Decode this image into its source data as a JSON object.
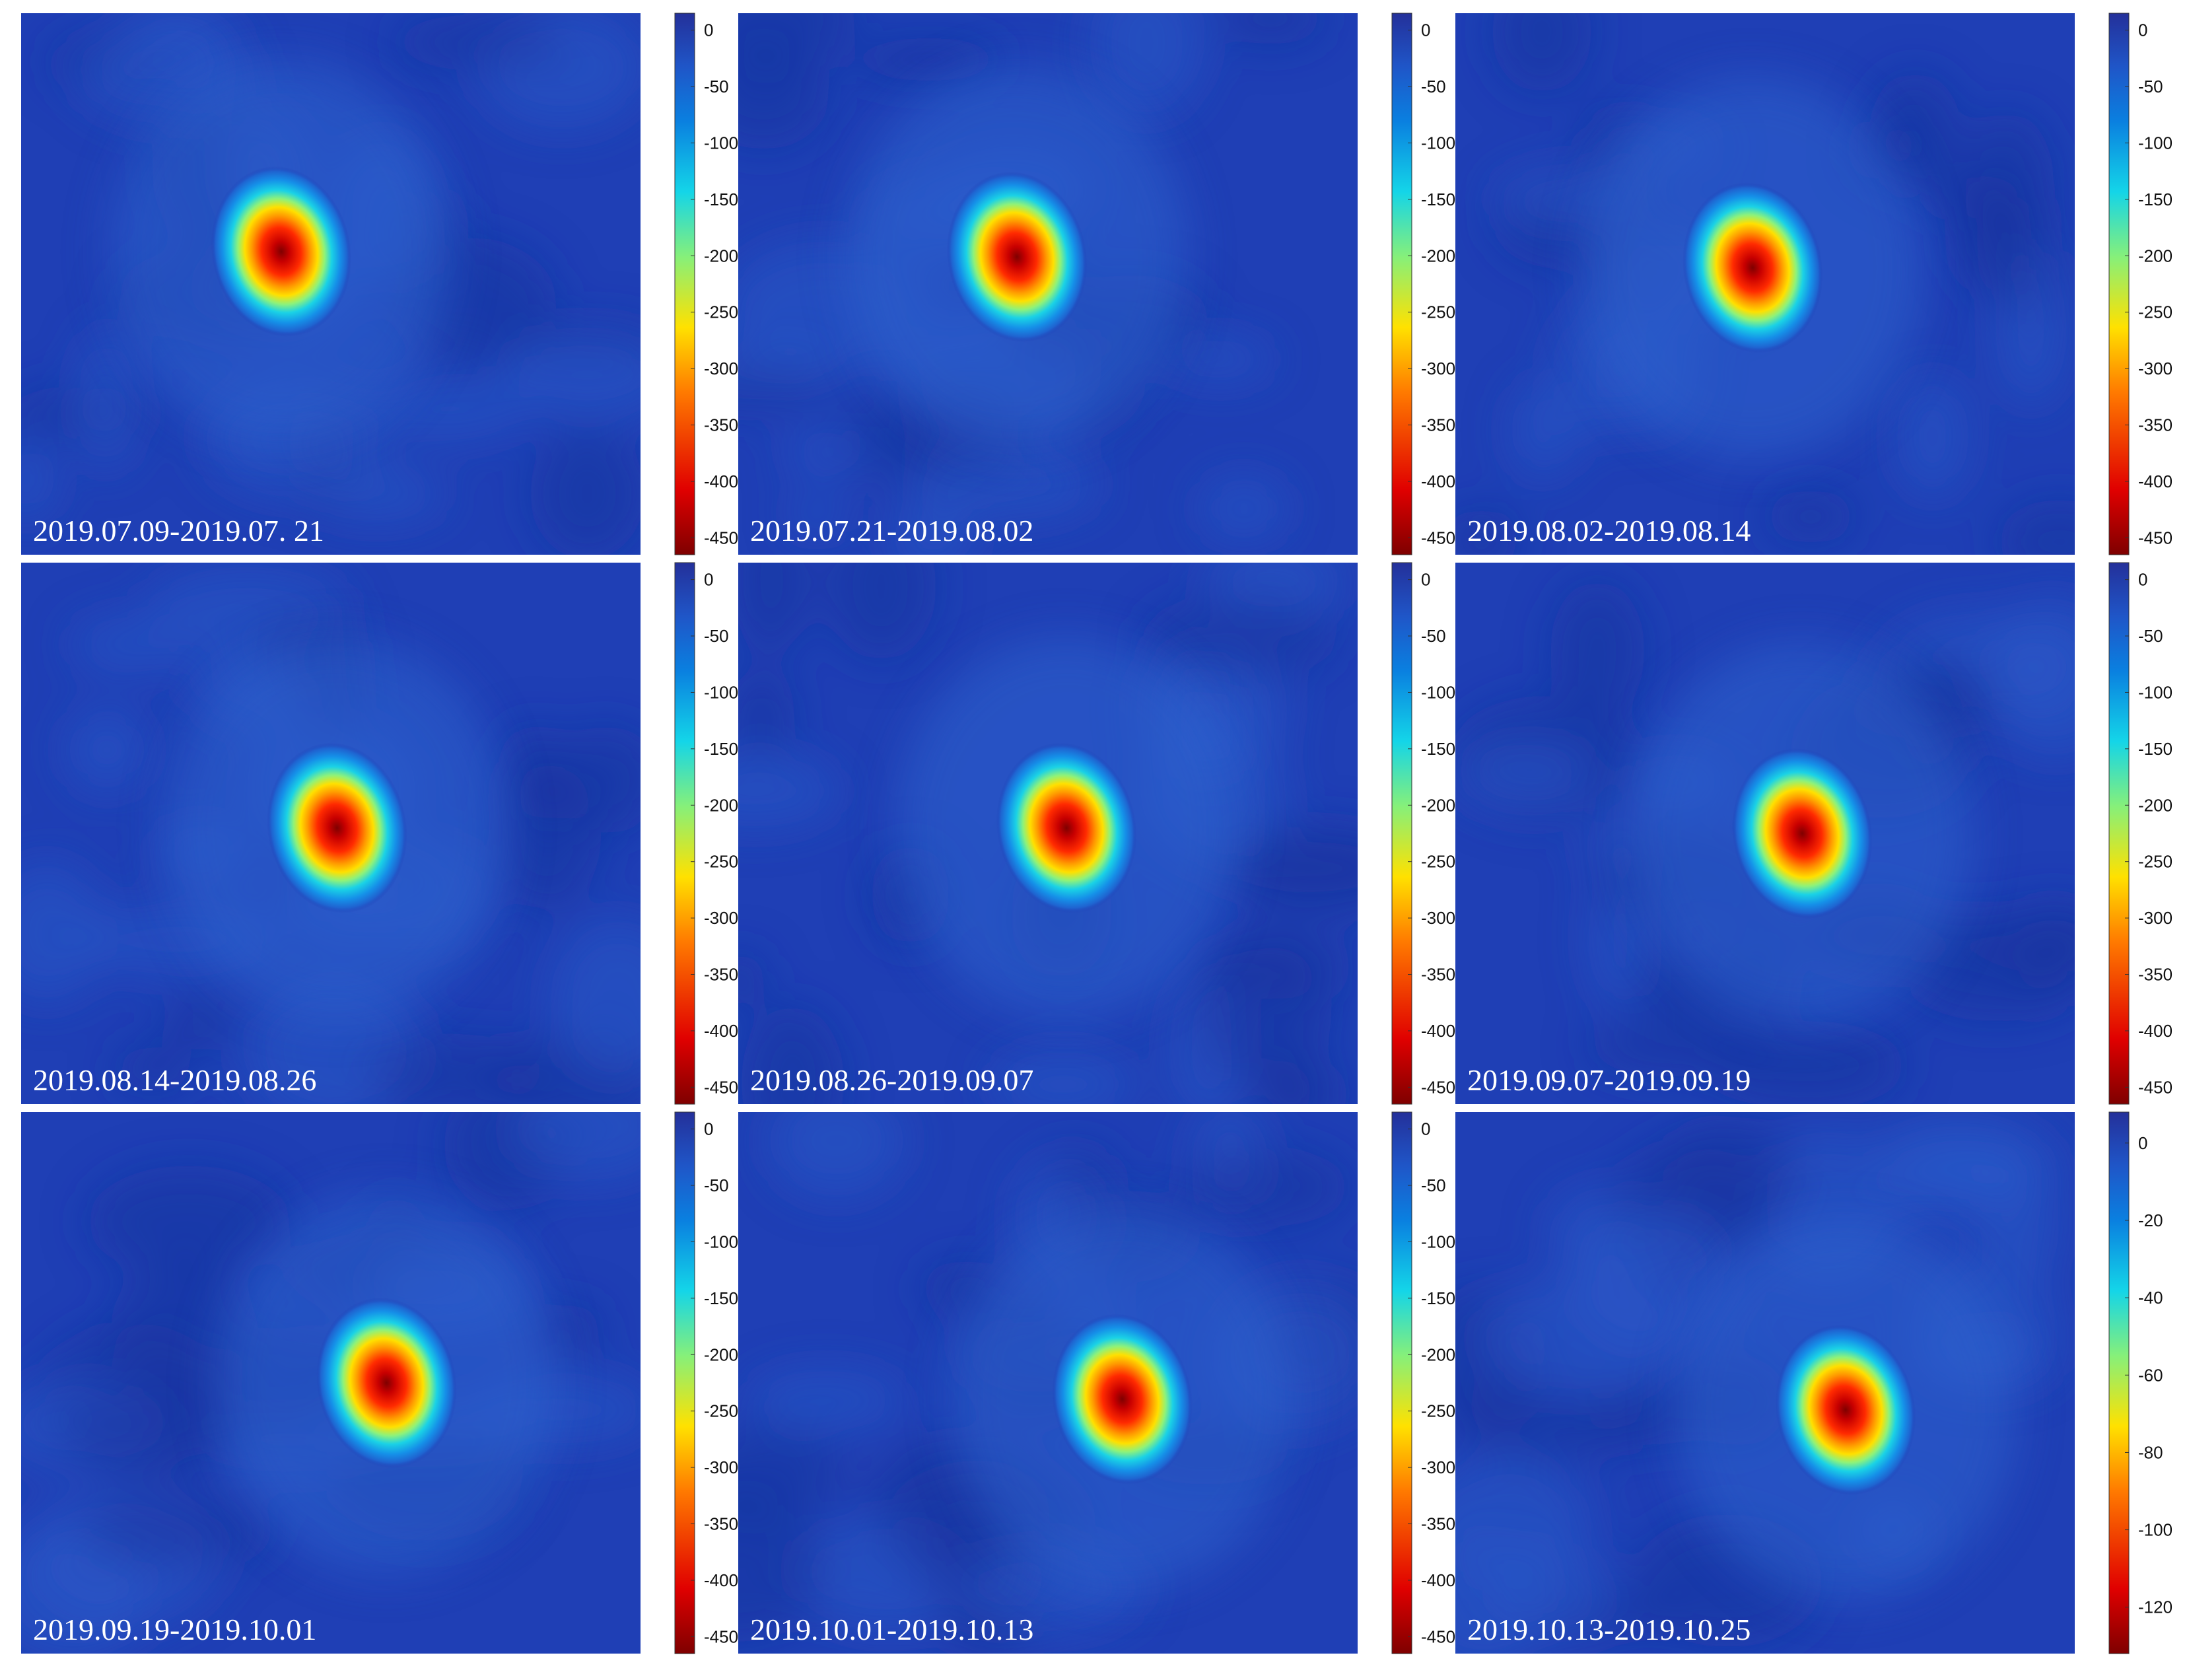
{
  "chart_data": [
    {
      "type": "heatmap",
      "annotation": "2019.07.09-2019.07. 21",
      "colorbar": {
        "ticks": [
          0,
          -50,
          -100,
          -150,
          -200,
          -250,
          -300,
          -350,
          -400,
          -450
        ],
        "range": [
          -465,
          15
        ]
      },
      "center": [
        0.42,
        0.44
      ],
      "peak": -465,
      "colors": {
        "high": "#1f3fb5",
        "low": "#7f0000"
      }
    },
    {
      "type": "heatmap",
      "annotation": "2019.07.21-2019.08.02",
      "colorbar": {
        "ticks": [
          0,
          -50,
          -100,
          -150,
          -200,
          -250,
          -300,
          -350,
          -400,
          -450
        ],
        "range": [
          -465,
          15
        ]
      },
      "center": [
        0.45,
        0.45
      ],
      "peak": -465,
      "colors": {
        "high": "#1f3fb5",
        "low": "#7f0000"
      }
    },
    {
      "type": "heatmap",
      "annotation": "2019.08.02-2019.08.14",
      "colorbar": {
        "ticks": [
          0,
          -50,
          -100,
          -150,
          -200,
          -250,
          -300,
          -350,
          -400,
          -450
        ],
        "range": [
          -465,
          15
        ]
      },
      "center": [
        0.48,
        0.47
      ],
      "peak": -465,
      "colors": {
        "high": "#1f3fb5",
        "low": "#7f0000"
      }
    },
    {
      "type": "heatmap",
      "annotation": "2019.08.14-2019.08.26",
      "colorbar": {
        "ticks": [
          0,
          -50,
          -100,
          -150,
          -200,
          -250,
          -300,
          -350,
          -400,
          -450
        ],
        "range": [
          -465,
          15
        ]
      },
      "center": [
        0.51,
        0.49
      ],
      "peak": -465,
      "colors": {
        "high": "#1f3fb5",
        "low": "#7f0000"
      }
    },
    {
      "type": "heatmap",
      "annotation": "2019.08.26-2019.09.07",
      "colorbar": {
        "ticks": [
          0,
          -50,
          -100,
          -150,
          -200,
          -250,
          -300,
          -350,
          -400,
          -450
        ],
        "range": [
          -465,
          15
        ]
      },
      "center": [
        0.53,
        0.49
      ],
      "peak": -465,
      "colors": {
        "high": "#1f3fb5",
        "low": "#7f0000"
      }
    },
    {
      "type": "heatmap",
      "annotation": "2019.09.07-2019.09.19",
      "colorbar": {
        "ticks": [
          0,
          -50,
          -100,
          -150,
          -200,
          -250,
          -300,
          -350,
          -400,
          -450
        ],
        "range": [
          -465,
          15
        ]
      },
      "center": [
        0.56,
        0.5
      ],
      "peak": -465,
      "colors": {
        "high": "#1f3fb5",
        "low": "#7f0000"
      }
    },
    {
      "type": "heatmap",
      "annotation": "2019.09.19-2019.10.01",
      "colorbar": {
        "ticks": [
          0,
          -50,
          -100,
          -150,
          -200,
          -250,
          -300,
          -350,
          -400,
          -450
        ],
        "range": [
          -465,
          15
        ]
      },
      "center": [
        0.59,
        0.5
      ],
      "peak": -465,
      "colors": {
        "high": "#1f3fb5",
        "low": "#7f0000"
      }
    },
    {
      "type": "heatmap",
      "annotation": "2019.10.01-2019.10.13",
      "colorbar": {
        "ticks": [
          0,
          -50,
          -100,
          -150,
          -200,
          -250,
          -300,
          -350,
          -400,
          -450
        ],
        "range": [
          -465,
          15
        ]
      },
      "center": [
        0.62,
        0.53
      ],
      "peak": -465,
      "colors": {
        "high": "#1f3fb5",
        "low": "#7f0000"
      }
    },
    {
      "type": "heatmap",
      "annotation": "2019.10.13-2019.10.25",
      "colorbar": {
        "ticks": [
          0,
          -20,
          -40,
          -60,
          -80,
          -100,
          -120
        ],
        "range": [
          -132,
          8
        ]
      },
      "center": [
        0.63,
        0.55
      ],
      "peak": -132,
      "colors": {
        "high": "#1f3fb5",
        "low": "#7f0000"
      }
    }
  ]
}
